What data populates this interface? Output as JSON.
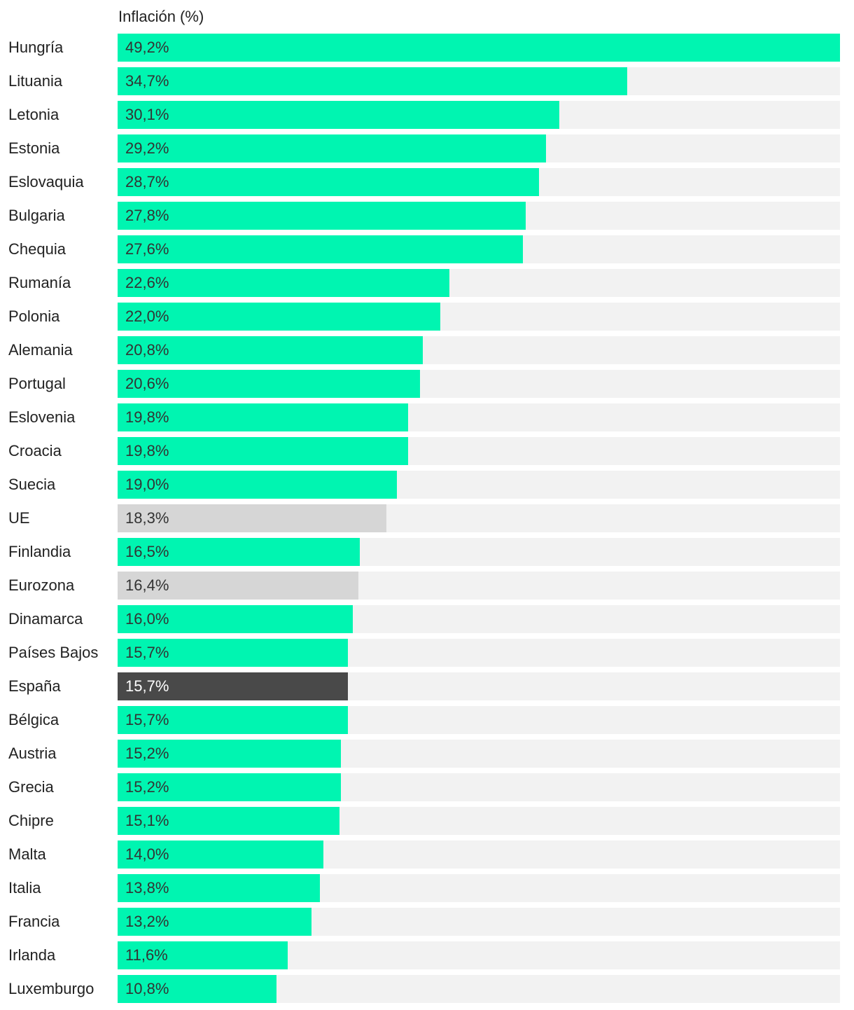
{
  "chart_data": {
    "type": "bar",
    "orientation": "horizontal",
    "title": "Inflación (%)",
    "xlim": [
      0,
      49.2
    ],
    "categories": [
      "Hungría",
      "Lituania",
      "Letonia",
      "Estonia",
      "Eslovaquia",
      "Bulgaria",
      "Chequia",
      "Rumanía",
      "Polonia",
      "Alemania",
      "Portugal",
      "Eslovenia",
      "Croacia",
      "Suecia",
      "UE",
      "Finlandia",
      "Eurozona",
      "Dinamarca",
      "Países Bajos",
      "España",
      "Bélgica",
      "Austria",
      "Grecia",
      "Chipre",
      "Malta",
      "Italia",
      "Francia",
      "Irlanda",
      "Luxemburgo"
    ],
    "values": [
      49.2,
      34.7,
      30.1,
      29.2,
      28.7,
      27.8,
      27.6,
      22.6,
      22.0,
      20.8,
      20.6,
      19.8,
      19.8,
      19.0,
      18.3,
      16.5,
      16.4,
      16.0,
      15.7,
      15.7,
      15.7,
      15.2,
      15.2,
      15.1,
      14.0,
      13.8,
      13.2,
      11.6,
      10.8
    ],
    "labels": [
      "49,2%",
      "34,7%",
      "30,1%",
      "29,2%",
      "28,7%",
      "27,8%",
      "27,6%",
      "22,6%",
      "22,0%",
      "20,8%",
      "20,6%",
      "19,8%",
      "19,8%",
      "19,0%",
      "18,3%",
      "16,5%",
      "16,4%",
      "16,0%",
      "15,7%",
      "15,7%",
      "15,7%",
      "15,2%",
      "15,2%",
      "15,1%",
      "14,0%",
      "13,8%",
      "13,2%",
      "11,6%",
      "10,8%"
    ],
    "highlights": {
      "UE": "aggregate",
      "Eurozona": "aggregate",
      "España": "focus"
    }
  },
  "colors": {
    "default_bar": "#00f5b1",
    "aggregate_bar": "#d6d6d6",
    "focus_bar": "#494949",
    "track": "#f2f2f2",
    "text": "#222222",
    "value_text": "#333333",
    "value_text_on_dark": "#ffffff"
  }
}
